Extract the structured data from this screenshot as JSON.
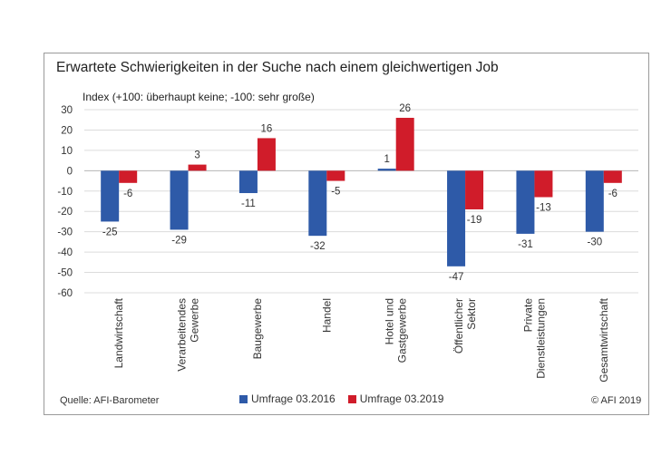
{
  "chart_data": {
    "type": "bar",
    "title": "Erwartete Schwierigkeiten in der Suche nach einem gleichwertigen Job",
    "ylabel": "Index (+100: überhaupt keine; -100: sehr große)",
    "xlabel": "",
    "ylim": [
      -60,
      30
    ],
    "yticks": [
      30,
      20,
      10,
      0,
      -10,
      -20,
      -30,
      -40,
      -50,
      -60
    ],
    "grid": true,
    "legend_position": "bottom",
    "categories": [
      [
        "Landwirtschaft"
      ],
      [
        "Verarbeitendes",
        "Gewerbe"
      ],
      [
        "Baugewerbe"
      ],
      [
        "Handel"
      ],
      [
        "Hotel und",
        "Gastgewerbe"
      ],
      [
        "Öffentlicher",
        "Sektor"
      ],
      [
        "Private",
        "Dienstleistungen"
      ],
      [
        "Gesamtwirtschaft"
      ]
    ],
    "series": [
      {
        "name": "Umfrage 03.2016",
        "color": "#2e5aa8",
        "values": [
          -25,
          -29,
          -11,
          -32,
          1,
          -47,
          -31,
          -30
        ]
      },
      {
        "name": "Umfrage 03.2019",
        "color": "#d01c2a",
        "values": [
          -6,
          3,
          16,
          -5,
          26,
          -19,
          -13,
          -6
        ]
      }
    ]
  },
  "footer": {
    "source": "Quelle:  AFI-Barometer",
    "copyright": "© AFI 2019"
  }
}
